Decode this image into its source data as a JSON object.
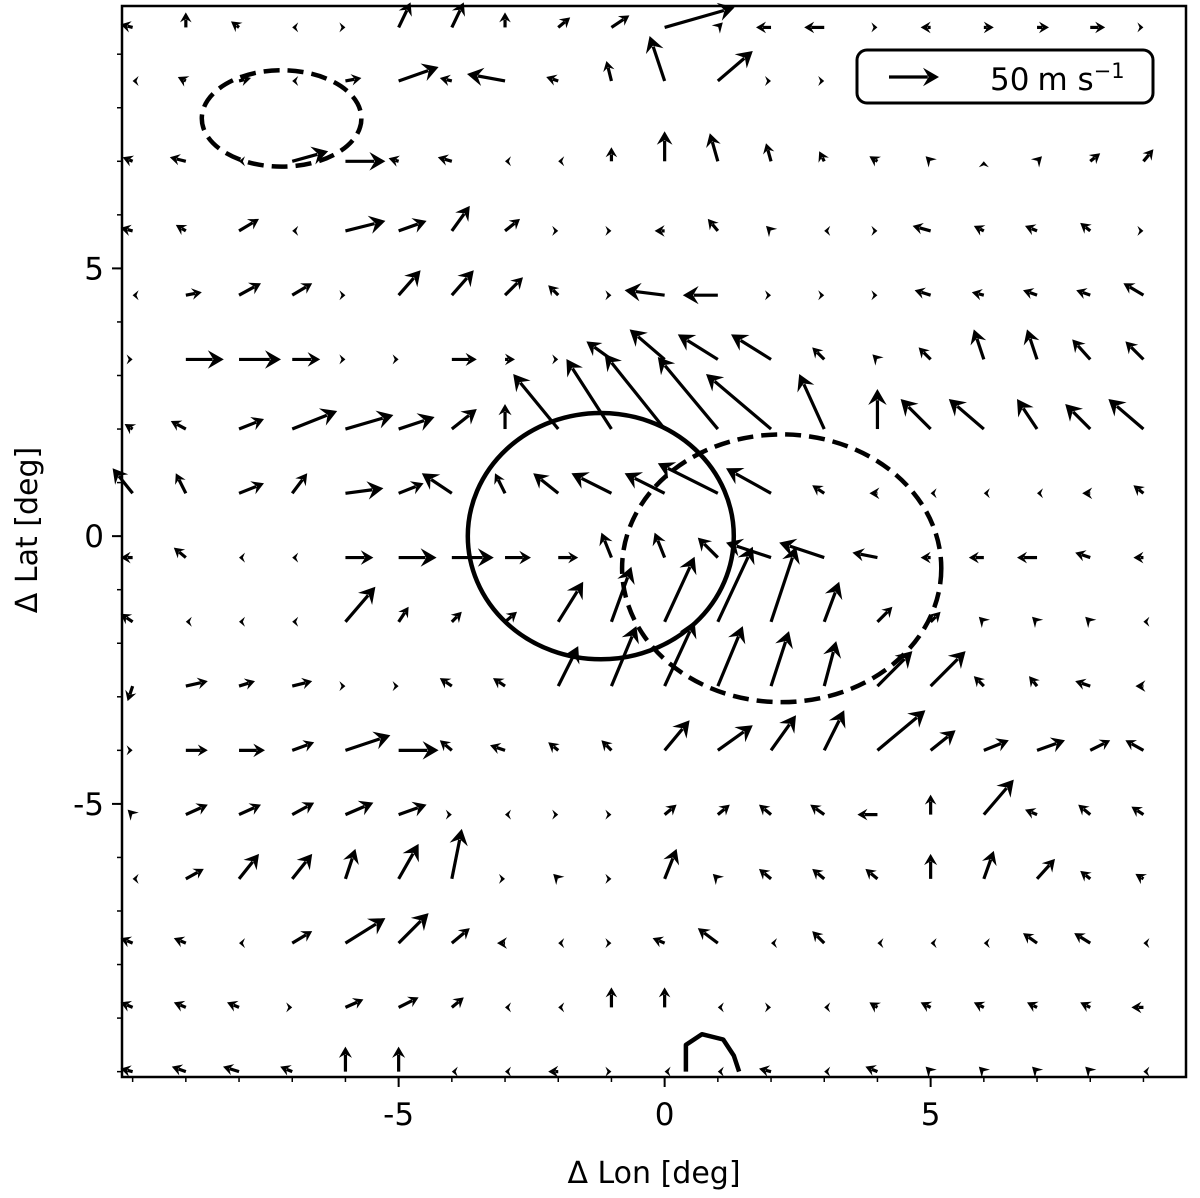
{
  "chart_data": {
    "type": "quiver",
    "xlabel": "Δ Lon [deg]",
    "ylabel": "Δ Lat [deg]",
    "xlim": [
      -10.2,
      9.8
    ],
    "ylim": [
      -10.1,
      9.9
    ],
    "x_ticks": [
      {
        "value": -5,
        "label": "-5"
      },
      {
        "value": 0,
        "label": "0"
      },
      {
        "value": 5,
        "label": "5"
      }
    ],
    "y_ticks": [
      {
        "value": 5,
        "label": "5"
      },
      {
        "value": 0,
        "label": "0"
      },
      {
        "value": -5,
        "label": "-5"
      }
    ],
    "minor_tick_step": 1,
    "grid": false,
    "key": {
      "label_value": "50",
      "label_unit": "m s",
      "label_exp": "−1",
      "speed": 50,
      "position": "top-right"
    },
    "grid_x": [
      -10,
      -9,
      -8,
      -7,
      -6,
      -5,
      -4,
      -3,
      -2,
      -1,
      0,
      1,
      2,
      3,
      4,
      5,
      6,
      7,
      8,
      9
    ],
    "grid_y": [
      9.5,
      8.5,
      7.0,
      5.7,
      4.5,
      3.3,
      2.0,
      0.8,
      -0.4,
      -1.6,
      -2.8,
      -4.0,
      -5.2,
      -6.4,
      -7.6,
      -8.8,
      -10.0
    ],
    "vectors": [
      [
        [
          -12,
          -3
        ],
        [
          0,
          -15
        ],
        [
          -8,
          -6
        ],
        [
          -5,
          0
        ],
        [
          0,
          0
        ],
        [
          12,
          -25
        ],
        [
          12,
          -25
        ],
        [
          0,
          -15
        ],
        [
          12,
          -10
        ],
        [
          18,
          -12
        ],
        [
          70,
          -20
        ],
        [
          5,
          -5
        ],
        [
          -15,
          0
        ],
        [
          -20,
          0
        ],
        [
          0,
          0
        ],
        [
          -10,
          0
        ],
        [
          10,
          0
        ],
        [
          12,
          0
        ],
        [
          15,
          0
        ],
        [
          0,
          0
        ]
      ],
      [
        [
          -5,
          0
        ],
        [
          -8,
          -4
        ],
        [
          12,
          -3
        ],
        [
          -5,
          0
        ],
        [
          16,
          -3
        ],
        [
          40,
          -14
        ],
        [
          -12,
          -3
        ],
        [
          -38,
          -7
        ],
        [
          -12,
          -4
        ],
        [
          -5,
          -20
        ],
        [
          -15,
          -45
        ],
        [
          35,
          -30
        ],
        [
          0,
          0
        ],
        [
          0,
          0
        ],
        [
          0,
          0
        ],
        [
          0,
          0
        ],
        [
          0,
          0
        ],
        [
          0,
          0
        ],
        [
          0,
          0
        ],
        [
          0,
          0
        ]
      ],
      [
        [
          -10,
          -4
        ],
        [
          -16,
          -4
        ],
        [
          -5,
          0
        ],
        [
          36,
          -10
        ],
        [
          40,
          0
        ],
        [
          -10,
          -3
        ],
        [
          -14,
          -4
        ],
        [
          -5,
          0
        ],
        [
          -5,
          0
        ],
        [
          0,
          -14
        ],
        [
          0,
          -30
        ],
        [
          -8,
          -28
        ],
        [
          -5,
          -18
        ],
        [
          -5,
          -10
        ],
        [
          -8,
          -5
        ],
        [
          -5,
          -5
        ],
        [
          0,
          -5
        ],
        [
          5,
          -5
        ],
        [
          10,
          -8
        ],
        [
          10,
          -12
        ]
      ],
      [
        [
          -12,
          -3
        ],
        [
          -10,
          -6
        ],
        [
          20,
          -12
        ],
        [
          -5,
          0
        ],
        [
          40,
          -10
        ],
        [
          28,
          -10
        ],
        [
          18,
          -25
        ],
        [
          15,
          -12
        ],
        [
          0,
          0
        ],
        [
          0,
          0
        ],
        [
          -10,
          0
        ],
        [
          -10,
          -12
        ],
        [
          -5,
          -5
        ],
        [
          -5,
          0
        ],
        [
          0,
          0
        ],
        [
          -18,
          -5
        ],
        [
          -10,
          -5
        ],
        [
          -12,
          -5
        ],
        [
          -10,
          -8
        ],
        [
          0,
          0
        ]
      ],
      [
        [
          -5,
          0
        ],
        [
          16,
          -3
        ],
        [
          22,
          -12
        ],
        [
          20,
          -12
        ],
        [
          0,
          0
        ],
        [
          22,
          -25
        ],
        [
          22,
          -25
        ],
        [
          18,
          -18
        ],
        [
          -10,
          -10
        ],
        [
          0,
          0
        ],
        [
          -40,
          -5
        ],
        [
          -35,
          0
        ],
        [
          0,
          0
        ],
        [
          0,
          0
        ],
        [
          0,
          0
        ],
        [
          -16,
          -5
        ],
        [
          -12,
          -3
        ],
        [
          -14,
          -5
        ],
        [
          -14,
          -5
        ],
        [
          -20,
          -12
        ]
      ],
      [
        [
          0,
          0
        ],
        [
          38,
          0
        ],
        [
          42,
          0
        ],
        [
          28,
          0
        ],
        [
          0,
          0
        ],
        [
          0,
          0
        ],
        [
          25,
          0
        ],
        [
          10,
          0
        ],
        [
          0,
          0
        ],
        [
          -25,
          -18
        ],
        [
          -35,
          -30
        ],
        [
          -40,
          -25
        ],
        [
          -40,
          -25
        ],
        [
          -12,
          -12
        ],
        [
          -5,
          -5
        ],
        [
          -12,
          -12
        ],
        [
          -10,
          -30
        ],
        [
          -10,
          -30
        ],
        [
          -18,
          -20
        ],
        [
          -18,
          -18
        ]
      ],
      [
        [
          -8,
          -5
        ],
        [
          -15,
          -8
        ],
        [
          25,
          -10
        ],
        [
          45,
          -18
        ],
        [
          48,
          -14
        ],
        [
          36,
          -12
        ],
        [
          25,
          -20
        ],
        [
          0,
          -25
        ],
        [
          -45,
          -55
        ],
        [
          -45,
          -70
        ],
        [
          -60,
          -75
        ],
        [
          -60,
          -72
        ],
        [
          -65,
          -55
        ],
        [
          -25,
          -55
        ],
        [
          0,
          -40
        ],
        [
          -30,
          -30
        ],
        [
          -35,
          -30
        ],
        [
          -20,
          -30
        ],
        [
          -25,
          -25
        ],
        [
          -35,
          -30
        ]
      ],
      [
        [
          -20,
          -25
        ],
        [
          -10,
          -20
        ],
        [
          25,
          -10
        ],
        [
          15,
          -20
        ],
        [
          38,
          -5
        ],
        [
          25,
          -10
        ],
        [
          -30,
          -20
        ],
        [
          -10,
          -20
        ],
        [
          -25,
          -20
        ],
        [
          -40,
          -20
        ],
        [
          -40,
          -20
        ],
        [
          -60,
          -30
        ],
        [
          -45,
          -25
        ],
        [
          -12,
          -8
        ],
        [
          -8,
          0
        ],
        [
          -5,
          0
        ],
        [
          -5,
          0
        ],
        [
          -5,
          0
        ],
        [
          -8,
          0
        ],
        [
          -10,
          -8
        ]
      ],
      [
        [
          -12,
          0
        ],
        [
          -12,
          -10
        ],
        [
          -5,
          0
        ],
        [
          -5,
          0
        ],
        [
          28,
          0
        ],
        [
          38,
          0
        ],
        [
          42,
          0
        ],
        [
          26,
          0
        ],
        [
          20,
          0
        ],
        [
          -10,
          -25
        ],
        [
          -10,
          -25
        ],
        [
          -20,
          -20
        ],
        [
          -45,
          -15
        ],
        [
          -45,
          -15
        ],
        [
          -25,
          -5
        ],
        [
          -10,
          0
        ],
        [
          -15,
          0
        ],
        [
          -20,
          0
        ],
        [
          -15,
          -5
        ],
        [
          -10,
          0
        ]
      ],
      [
        [
          -12,
          -8
        ],
        [
          -5,
          0
        ],
        [
          -5,
          0
        ],
        [
          -5,
          0
        ],
        [
          30,
          -35
        ],
        [
          10,
          -15
        ],
        [
          10,
          -10
        ],
        [
          12,
          -10
        ],
        [
          25,
          -40
        ],
        [
          20,
          -55
        ],
        [
          30,
          -65
        ],
        [
          35,
          -75
        ],
        [
          25,
          -75
        ],
        [
          15,
          -40
        ],
        [
          15,
          -15
        ],
        [
          10,
          -10
        ],
        [
          -5,
          -5
        ],
        [
          -5,
          -5
        ],
        [
          -5,
          -5
        ],
        [
          -5,
          0
        ]
      ],
      [
        [
          -5,
          15
        ],
        [
          22,
          -5
        ],
        [
          16,
          -5
        ],
        [
          20,
          -5
        ],
        [
          0,
          0
        ],
        [
          0,
          0
        ],
        [
          -12,
          -8
        ],
        [
          -12,
          -8
        ],
        [
          20,
          -40
        ],
        [
          25,
          -60
        ],
        [
          30,
          -65
        ],
        [
          25,
          -60
        ],
        [
          18,
          -55
        ],
        [
          12,
          -45
        ],
        [
          35,
          -35
        ],
        [
          35,
          -35
        ],
        [
          -10,
          -10
        ],
        [
          -8,
          -10
        ],
        [
          -15,
          -5
        ],
        [
          -8,
          0
        ]
      ],
      [
        [
          0,
          0
        ],
        [
          22,
          0
        ],
        [
          26,
          0
        ],
        [
          22,
          -8
        ],
        [
          45,
          -15
        ],
        [
          40,
          0
        ],
        [
          -12,
          -10
        ],
        [
          -15,
          -5
        ],
        [
          -10,
          -8
        ],
        [
          -10,
          -10
        ],
        [
          25,
          -30
        ],
        [
          35,
          -25
        ],
        [
          25,
          -35
        ],
        [
          20,
          -40
        ],
        [
          48,
          -40
        ],
        [
          25,
          -20
        ],
        [
          25,
          -10
        ],
        [
          28,
          -10
        ],
        [
          20,
          -10
        ],
        [
          -18,
          -10
        ]
      ],
      [
        [
          -5,
          -5
        ],
        [
          22,
          -10
        ],
        [
          22,
          -10
        ],
        [
          22,
          -12
        ],
        [
          28,
          -12
        ],
        [
          28,
          -10
        ],
        [
          0,
          0
        ],
        [
          -5,
          0
        ],
        [
          0,
          0
        ],
        [
          0,
          0
        ],
        [
          12,
          -10
        ],
        [
          12,
          -10
        ],
        [
          -12,
          -10
        ],
        [
          -14,
          -10
        ],
        [
          -20,
          0
        ],
        [
          0,
          -20
        ],
        [
          30,
          -35
        ],
        [
          -12,
          -5
        ],
        [
          -12,
          -10
        ],
        [
          -12,
          -8
        ]
      ],
      [
        [
          -5,
          0
        ],
        [
          18,
          -10
        ],
        [
          20,
          -25
        ],
        [
          20,
          -25
        ],
        [
          10,
          -30
        ],
        [
          20,
          -35
        ],
        [
          10,
          -50
        ],
        [
          0,
          0
        ],
        [
          -5,
          -5
        ],
        [
          0,
          0
        ],
        [
          12,
          -30
        ],
        [
          -5,
          -5
        ],
        [
          -12,
          -10
        ],
        [
          -12,
          -10
        ],
        [
          -12,
          -10
        ],
        [
          0,
          -25
        ],
        [
          10,
          -28
        ],
        [
          18,
          -20
        ],
        [
          -10,
          -8
        ],
        [
          -8,
          -5
        ]
      ],
      [
        [
          -12,
          -5
        ],
        [
          -12,
          -5
        ],
        [
          -5,
          0
        ],
        [
          20,
          -12
        ],
        [
          40,
          -25
        ],
        [
          30,
          -30
        ],
        [
          18,
          -15
        ],
        [
          -8,
          0
        ],
        [
          -5,
          0
        ],
        [
          0,
          0
        ],
        [
          -12,
          -5
        ],
        [
          -20,
          -15
        ],
        [
          -5,
          0
        ],
        [
          -12,
          -12
        ],
        [
          -5,
          0
        ],
        [
          -5,
          0
        ],
        [
          -5,
          0
        ],
        [
          -14,
          -10
        ],
        [
          -16,
          -10
        ],
        [
          -5,
          0
        ]
      ],
      [
        [
          -12,
          -5
        ],
        [
          -12,
          -5
        ],
        [
          -12,
          -5
        ],
        [
          0,
          0
        ],
        [
          18,
          -8
        ],
        [
          20,
          -10
        ],
        [
          12,
          -10
        ],
        [
          -5,
          0
        ],
        [
          -5,
          0
        ],
        [
          0,
          -20
        ],
        [
          0,
          -20
        ],
        [
          -5,
          0
        ],
        [
          0,
          0
        ],
        [
          -5,
          0
        ],
        [
          -8,
          -5
        ],
        [
          -10,
          -5
        ],
        [
          -10,
          -5
        ],
        [
          -10,
          -5
        ],
        [
          -10,
          -5
        ],
        [
          -12,
          0
        ]
      ],
      [
        [
          -12,
          -3
        ],
        [
          -14,
          -5
        ],
        [
          -16,
          -5
        ],
        [
          -12,
          -5
        ],
        [
          0,
          -25
        ],
        [
          0,
          -25
        ],
        [
          -5,
          0
        ],
        [
          -5,
          0
        ],
        [
          -10,
          0
        ],
        [
          0,
          0
        ],
        [
          -5,
          0
        ],
        [
          -5,
          0
        ],
        [
          -12,
          -3
        ],
        [
          -5,
          0
        ],
        [
          -12,
          -5
        ],
        [
          -5,
          -5
        ],
        [
          -5,
          -5
        ],
        [
          -5,
          -5
        ],
        [
          -5,
          -5
        ],
        [
          -5,
          0
        ]
      ]
    ],
    "contours": [
      {
        "style": "solid",
        "center": [
          -1.2,
          0.0
        ],
        "rx": 2.5,
        "ry": 2.3
      },
      {
        "style": "dashed",
        "center": [
          2.2,
          -0.6
        ],
        "rx": 3.0,
        "ry": 2.5
      },
      {
        "style": "dashed",
        "center": [
          -7.2,
          7.8
        ],
        "rx": 1.5,
        "ry": 0.9
      },
      {
        "style": "solid_open",
        "points": [
          [
            0.4,
            -10.0
          ],
          [
            0.4,
            -9.5
          ],
          [
            0.7,
            -9.3
          ],
          [
            1.1,
            -9.4
          ],
          [
            1.3,
            -9.7
          ],
          [
            1.4,
            -10.0
          ]
        ]
      }
    ]
  }
}
